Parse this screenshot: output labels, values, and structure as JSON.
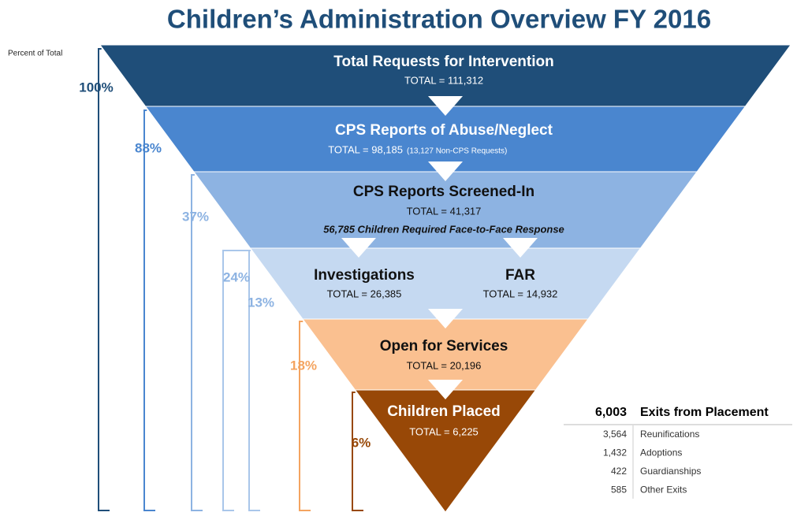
{
  "title": "Children’s Administration Overview FY 2016",
  "percent_axis_label": "Percent of Total",
  "levels": [
    {
      "label": "Total Requests for Intervention",
      "total": "TOTAL = 111,312",
      "percent": "100%"
    },
    {
      "label": "CPS Reports of Abuse/Neglect",
      "total": "TOTAL = 98,185",
      "note": "(13,127 Non-CPS Requests)",
      "percent": "88%"
    },
    {
      "label": "CPS Reports Screened-In",
      "total": "TOTAL = 41,317",
      "note": "56,785 Children Required Face-to-Face Response",
      "percent": "37%"
    },
    {
      "branches": [
        {
          "label": "Investigations",
          "total": "TOTAL = 26,385",
          "percent": "24%"
        },
        {
          "label": "FAR",
          "total": "TOTAL = 14,932",
          "percent": "13%"
        }
      ]
    },
    {
      "label": "Open for Services",
      "total": "TOTAL = 20,196",
      "percent": "18%"
    },
    {
      "label": "Children Placed",
      "total": "TOTAL = 6,225",
      "percent": "6%"
    }
  ],
  "exits": {
    "total": "6,003",
    "label": "Exits from Placement",
    "rows": [
      {
        "count": "3,564",
        "label": "Reunifications"
      },
      {
        "count": "1,432",
        "label": "Adoptions"
      },
      {
        "count": "422",
        "label": "Guardianships"
      },
      {
        "count": "585",
        "label": "Other Exits"
      }
    ]
  }
}
